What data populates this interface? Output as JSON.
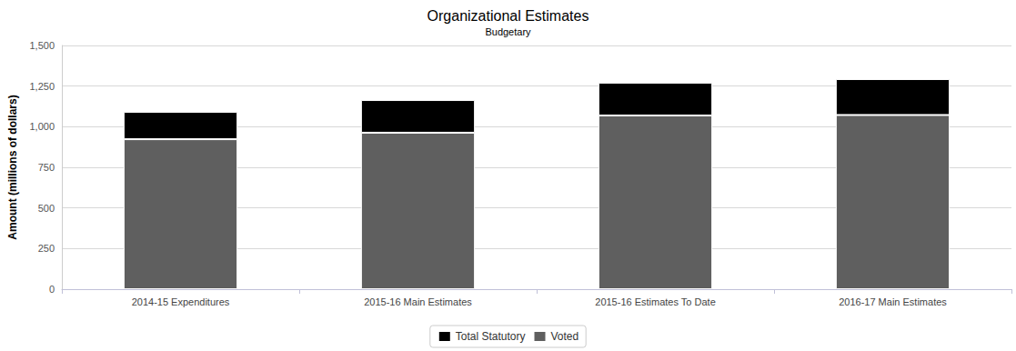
{
  "chart_data": {
    "type": "bar",
    "title": "Organizational Estimates",
    "subtitle": "Budgetary",
    "y_label": "Amount (millions of dollars)",
    "categories": [
      "2014-15 Expenditures",
      "2015-16 Main Estimates",
      "2015-16 Estimates To Date",
      "2016-17 Main Estimates"
    ],
    "series": [
      {
        "name": "Voted",
        "color": "#5f5f5f",
        "values": [
          923,
          963,
          1069,
          1072
        ]
      },
      {
        "name": "Total Statutory",
        "color": "#000000",
        "values": [
          168,
          201,
          202,
          221
        ]
      }
    ],
    "stacked": true,
    "ylim": [
      0,
      1500
    ],
    "yticks": [
      0,
      250,
      500,
      750,
      {
        "value": 1000,
        "label": "1,000"
      },
      {
        "value": 1250,
        "label": "1,250"
      },
      {
        "value": 1500,
        "label": "1,500"
      }
    ],
    "grid": true,
    "legend": "bottom"
  }
}
